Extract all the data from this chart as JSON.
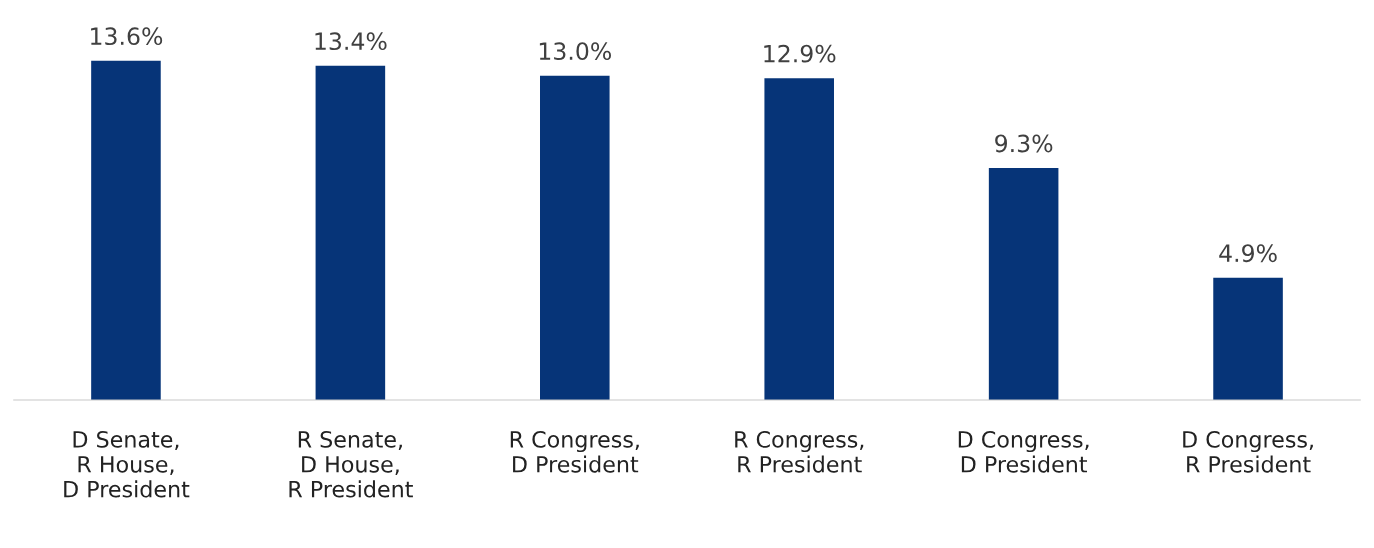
{
  "chart_data": {
    "type": "bar",
    "categories": [
      "D Senate,\nR House,\nD President",
      "R Senate,\nD House,\nR President",
      "R Congress,\nD President",
      "R Congress,\nR President",
      "D Congress,\nD President",
      "D Congress,\nR President"
    ],
    "values": [
      13.6,
      13.4,
      13.0,
      12.9,
      9.3,
      4.9
    ],
    "value_labels": [
      "13.6%",
      "13.4%",
      "13.0%",
      "12.9%",
      "9.3%",
      "4.9%"
    ],
    "color": "#063478",
    "grid": false,
    "legend": false
  }
}
